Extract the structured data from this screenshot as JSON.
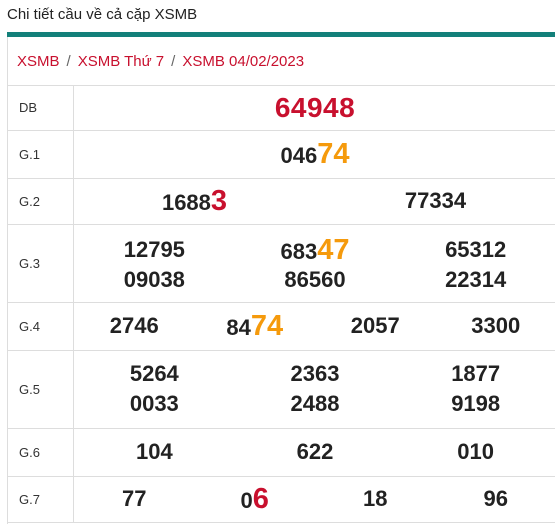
{
  "page_title": "Chi tiết cầu về cả cặp XSMB",
  "breadcrumb": [
    "XSMB",
    "XSMB Thứ 7",
    "XSMB 04/02/2023"
  ],
  "breadcrumb_separator": "/",
  "colors": {
    "accent_bar": "#13807a",
    "breadcrumb": "#c8102e",
    "special": "#c8102e",
    "highlight_orange": "#f59a0c",
    "highlight_red": "#c8102e"
  },
  "rows": [
    {
      "label": "DB",
      "numbers": [
        {
          "prefix": "64948",
          "hl": ""
        }
      ]
    },
    {
      "label": "G.1",
      "numbers": [
        {
          "prefix": "046",
          "hl": "74"
        }
      ]
    },
    {
      "label": "G.2",
      "numbers": [
        {
          "prefix": "1688",
          "hl": "3"
        },
        {
          "prefix": "77334",
          "hl": ""
        }
      ]
    },
    {
      "label": "G.3",
      "numbers": [
        {
          "prefix": "12795",
          "hl": ""
        },
        {
          "prefix": "683",
          "hl": "47"
        },
        {
          "prefix": "65312",
          "hl": ""
        },
        {
          "prefix": "09038",
          "hl": ""
        },
        {
          "prefix": "86560",
          "hl": ""
        },
        {
          "prefix": "22314",
          "hl": ""
        }
      ]
    },
    {
      "label": "G.4",
      "numbers": [
        {
          "prefix": "2746",
          "hl": ""
        },
        {
          "prefix": "84",
          "hl": "74"
        },
        {
          "prefix": "2057",
          "hl": ""
        },
        {
          "prefix": "3300",
          "hl": ""
        }
      ]
    },
    {
      "label": "G.5",
      "numbers": [
        {
          "prefix": "5264",
          "hl": ""
        },
        {
          "prefix": "2363",
          "hl": ""
        },
        {
          "prefix": "1877",
          "hl": ""
        },
        {
          "prefix": "0033",
          "hl": ""
        },
        {
          "prefix": "2488",
          "hl": ""
        },
        {
          "prefix": "9198",
          "hl": ""
        }
      ]
    },
    {
      "label": "G.6",
      "numbers": [
        {
          "prefix": "104",
          "hl": ""
        },
        {
          "prefix": "622",
          "hl": ""
        },
        {
          "prefix": "010",
          "hl": ""
        }
      ]
    },
    {
      "label": "G.7",
      "numbers": [
        {
          "prefix": "77",
          "hl": ""
        },
        {
          "prefix": "0",
          "hl": "6"
        },
        {
          "prefix": "18",
          "hl": ""
        },
        {
          "prefix": "96",
          "hl": ""
        }
      ]
    }
  ]
}
